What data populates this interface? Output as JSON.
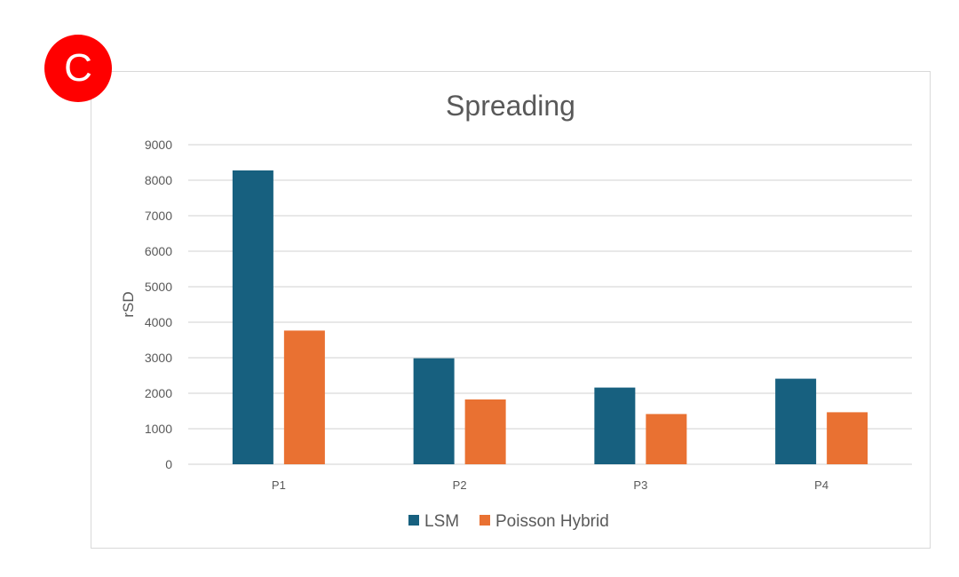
{
  "badge": "C",
  "chart_data": {
    "type": "bar",
    "title": "Spreading",
    "xlabel": "",
    "ylabel": "rSD",
    "ylim": [
      0,
      9000
    ],
    "yticks": [
      0,
      1000,
      2000,
      3000,
      4000,
      5000,
      6000,
      7000,
      8000,
      9000
    ],
    "grid": true,
    "legend": "bottom",
    "categories": [
      "P1",
      "P2",
      "P3",
      "P4"
    ],
    "series": [
      {
        "name": "LSM",
        "color": "#17607f",
        "values": [
          8275,
          2985,
          2160,
          2410
        ]
      },
      {
        "name": "Poisson Hybrid",
        "color": "#e97132",
        "values": [
          3765,
          1825,
          1415,
          1465
        ]
      }
    ]
  }
}
